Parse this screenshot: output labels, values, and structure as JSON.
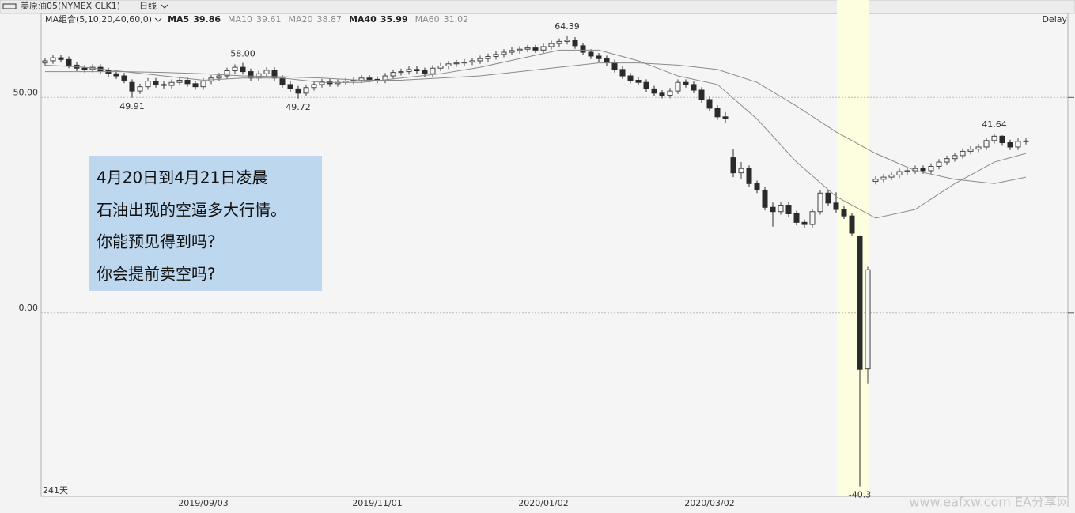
{
  "header": {
    "instrument": "美原油05(NYMEX CLK1)",
    "period": "日线",
    "ma_group": "MA组合(5,10,20,40,60,0)",
    "delay": "Delay"
  },
  "chart_data": {
    "type": "candlestick",
    "categories": [
      null,
      null,
      null,
      null,
      null,
      null,
      null,
      null,
      null,
      null,
      null,
      null,
      null,
      null,
      null,
      null,
      null,
      null,
      null,
      null,
      "2019/09/03",
      null,
      null,
      null,
      null,
      null,
      null,
      null,
      null,
      null,
      null,
      null,
      null,
      null,
      null,
      null,
      null,
      null,
      null,
      null,
      null,
      null,
      "2019/11/01",
      null,
      null,
      null,
      null,
      null,
      null,
      null,
      null,
      null,
      null,
      null,
      null,
      null,
      null,
      null,
      null,
      null,
      null,
      null,
      null,
      "2020/01/02",
      null,
      null,
      null,
      null,
      null,
      null,
      null,
      null,
      null,
      null,
      null,
      null,
      null,
      null,
      null,
      null,
      null,
      null,
      null,
      null,
      "2020/03/02",
      null,
      null,
      null,
      null,
      null,
      null,
      null,
      null,
      null,
      null,
      null,
      null,
      null,
      null,
      null,
      null,
      null,
      null,
      null,
      null,
      null,
      null,
      null,
      null,
      null,
      null,
      null,
      null,
      null,
      null,
      null,
      null,
      null,
      null,
      null,
      null,
      null,
      null,
      null,
      null
    ],
    "open": [
      58.0,
      58.5,
      59.2,
      58.8,
      57.5,
      56.8,
      56.5,
      57.0,
      56.2,
      55.5,
      55.0,
      53.5,
      51.5,
      52.5,
      53.8,
      53.0,
      52.8,
      53.5,
      54.0,
      53.2,
      52.5,
      53.8,
      54.5,
      55.0,
      56.2,
      57.0,
      56.0,
      54.5,
      55.5,
      56.3,
      54.5,
      53.0,
      52.0,
      51.0,
      52.3,
      53.0,
      53.6,
      53.2,
      53.5,
      53.8,
      54.0,
      54.5,
      54.2,
      54.0,
      55.0,
      55.8,
      56.0,
      56.5,
      56.2,
      55.5,
      56.8,
      57.3,
      57.8,
      58.0,
      58.2,
      58.5,
      59.0,
      59.5,
      60.0,
      60.5,
      60.9,
      61.2,
      61.5,
      61.0,
      61.8,
      62.5,
      63.0,
      63.3,
      62.0,
      60.5,
      59.6,
      59.0,
      58.1,
      56.5,
      55.0,
      54.0,
      53.5,
      52.0,
      51.0,
      50.5,
      51.5,
      53.5,
      53.0,
      51.7,
      49.5,
      47.5,
      45.5,
      36.0,
      32.5,
      33.5,
      30.0,
      28.5,
      24.5,
      23.5,
      25.0,
      23.0,
      21.0,
      20.5,
      23.5,
      27.8,
      25.5,
      24.0,
      22.5,
      17.7,
      -13.0,
      30.5,
      31.0,
      31.5,
      32.0,
      32.8,
      33.0,
      33.5,
      33.0,
      34.0,
      35.0,
      35.8,
      36.5,
      37.5,
      38.0,
      38.5,
      40.0,
      41.0,
      39.5,
      38.5,
      39.8
    ],
    "high": [
      59.2,
      59.9,
      59.9,
      59.5,
      58.2,
      57.5,
      57.7,
      57.7,
      56.9,
      56.2,
      55.7,
      54.2,
      53.2,
      54.5,
      54.5,
      53.7,
      54.2,
      54.7,
      54.7,
      53.9,
      54.5,
      55.2,
      55.7,
      56.9,
      57.7,
      58.0,
      56.7,
      56.2,
      57.0,
      57.0,
      55.2,
      53.7,
      52.7,
      53.0,
      53.7,
      54.3,
      54.3,
      54.2,
      54.5,
      54.7,
      55.2,
      55.2,
      54.9,
      55.7,
      56.5,
      56.7,
      57.2,
      57.2,
      56.9,
      57.5,
      58.0,
      58.5,
      58.7,
      58.9,
      59.2,
      59.7,
      60.2,
      60.7,
      61.2,
      61.6,
      61.9,
      62.2,
      62.2,
      62.5,
      63.2,
      63.7,
      64.39,
      64.0,
      62.7,
      61.2,
      60.3,
      59.7,
      58.8,
      57.2,
      55.7,
      54.7,
      54.2,
      52.7,
      51.7,
      52.2,
      54.2,
      54.2,
      53.7,
      52.4,
      50.2,
      48.2,
      46.6,
      38.0,
      35.0,
      34.2,
      30.7,
      29.2,
      25.6,
      25.7,
      25.7,
      23.7,
      21.7,
      24.2,
      28.5,
      28.5,
      28.0,
      24.7,
      23.2,
      18.0,
      10.7,
      31.7,
      32.2,
      32.7,
      33.5,
      33.7,
      34.2,
      34.2,
      34.7,
      35.7,
      36.5,
      37.2,
      38.2,
      38.7,
      39.2,
      40.7,
      41.64,
      41.2,
      40.2,
      40.5,
      40.6
    ],
    "low": [
      57.3,
      57.8,
      58.1,
      56.8,
      56.1,
      55.8,
      55.8,
      55.5,
      54.8,
      54.3,
      53.3,
      49.91,
      50.8,
      51.8,
      52.3,
      52.1,
      52.1,
      52.8,
      52.5,
      51.8,
      51.8,
      53.1,
      53.8,
      54.3,
      55.5,
      55.3,
      53.8,
      53.8,
      54.8,
      53.8,
      52.3,
      51.3,
      49.72,
      50.3,
      51.6,
      52.3,
      52.5,
      52.5,
      52.8,
      53.1,
      53.3,
      53.5,
      53.3,
      53.3,
      54.3,
      55.1,
      55.3,
      55.5,
      54.8,
      54.8,
      56.1,
      56.6,
      57.1,
      57.3,
      57.5,
      57.8,
      58.3,
      58.8,
      59.3,
      59.8,
      60.2,
      60.5,
      60.3,
      60.3,
      61.1,
      61.8,
      62.3,
      61.3,
      59.8,
      58.9,
      58.3,
      57.4,
      55.8,
      54.3,
      53.3,
      52.8,
      51.3,
      50.3,
      49.8,
      49.8,
      50.8,
      52.3,
      51.0,
      48.8,
      46.8,
      44.8,
      44.0,
      31.5,
      31.0,
      29.3,
      27.8,
      23.8,
      20.0,
      22.8,
      22.3,
      20.3,
      19.8,
      19.8,
      22.8,
      24.8,
      23.3,
      21.8,
      17.8,
      -40.32,
      -16.5,
      29.8,
      30.3,
      30.8,
      31.3,
      32.1,
      32.3,
      32.3,
      32.3,
      33.3,
      34.3,
      35.1,
      35.8,
      36.8,
      37.3,
      37.8,
      39.3,
      38.8,
      37.8,
      37.8,
      39.1
    ],
    "close": [
      58.5,
      59.2,
      58.8,
      57.5,
      56.8,
      56.5,
      57.0,
      56.2,
      55.5,
      55.0,
      54.0,
      51.5,
      52.5,
      53.8,
      53.0,
      52.8,
      53.5,
      54.0,
      53.2,
      52.5,
      53.8,
      54.5,
      55.0,
      56.2,
      57.0,
      56.0,
      54.5,
      55.5,
      56.3,
      54.5,
      53.0,
      52.0,
      51.0,
      52.3,
      53.0,
      53.6,
      53.2,
      53.5,
      53.8,
      54.0,
      54.5,
      54.2,
      54.0,
      55.0,
      55.8,
      56.0,
      56.5,
      56.2,
      55.5,
      56.8,
      57.3,
      57.8,
      58.0,
      58.2,
      58.5,
      59.0,
      59.5,
      60.0,
      60.5,
      60.9,
      61.2,
      61.5,
      61.0,
      61.8,
      62.5,
      63.0,
      63.3,
      62.0,
      60.5,
      59.6,
      59.0,
      58.1,
      56.5,
      55.0,
      54.0,
      53.5,
      52.0,
      51.0,
      50.5,
      51.5,
      53.5,
      53.0,
      51.7,
      49.5,
      47.5,
      45.5,
      45.2,
      32.5,
      33.5,
      30.0,
      28.5,
      24.5,
      23.5,
      25.0,
      23.0,
      21.0,
      20.5,
      23.5,
      27.8,
      25.5,
      24.0,
      22.5,
      18.5,
      -13.1,
      10.0,
      31.0,
      31.5,
      32.0,
      32.8,
      33.0,
      33.5,
      33.0,
      34.0,
      35.0,
      35.8,
      36.5,
      37.5,
      38.0,
      38.5,
      40.0,
      41.0,
      39.5,
      38.5,
      39.8,
      39.9
    ],
    "up_color": "#444444",
    "down_color": "#2a2a2a",
    "ylim": [
      -42.6,
      69.5
    ],
    "yticks": [
      {
        "value": 0,
        "label": "0.00"
      },
      {
        "value": 50,
        "label": "50.00"
      }
    ],
    "grid": true,
    "ma_series": [
      {
        "name": "MA5",
        "last": 39.86,
        "color": "#222222"
      },
      {
        "name": "MA10",
        "last": 39.61,
        "color": "#8a8a8a"
      },
      {
        "name": "MA20",
        "last": 38.87,
        "color": "#8a8a8a",
        "x": [
          0,
          5,
          10,
          15,
          20,
          25,
          30,
          35,
          40,
          45,
          50,
          55,
          60,
          65,
          70,
          75,
          80,
          85,
          90,
          95,
          100,
          105,
          110,
          115,
          120,
          124
        ],
        "values": [
          57.5,
          57,
          56,
          55,
          54,
          54.5,
          54.5,
          53.5,
          53.5,
          54.5,
          55.5,
          57,
          59,
          61,
          61,
          58.5,
          55,
          53,
          45,
          35,
          27,
          22,
          24,
          30,
          35,
          37
        ]
      },
      {
        "name": "MA40",
        "last": 35.99,
        "color": "#222222"
      },
      {
        "name": "MA60",
        "last": 31.02,
        "color": "#8a8a8a",
        "x": [
          0,
          5,
          10,
          15,
          20,
          25,
          30,
          35,
          40,
          45,
          50,
          55,
          60,
          65,
          70,
          75,
          80,
          85,
          90,
          95,
          100,
          105,
          110,
          115,
          120,
          124
        ],
        "values": [
          56,
          56,
          56,
          55.8,
          55.5,
          55,
          54.8,
          54.5,
          54,
          54,
          54.5,
          55,
          56,
          57,
          58,
          58,
          57.5,
          56.5,
          53.5,
          48,
          42,
          37,
          33,
          31,
          30,
          31.5
        ]
      }
    ],
    "annotations": [
      {
        "text": "64.39",
        "value": 64.39,
        "x": 66,
        "position": "above"
      },
      {
        "text": "58.00",
        "value": 58.0,
        "x": 25,
        "position": "above"
      },
      {
        "text": "49.91",
        "value": 49.91,
        "x": 11,
        "position": "below"
      },
      {
        "text": "49.72",
        "value": 49.72,
        "x": 32,
        "position": "below"
      },
      {
        "text": "41.64",
        "value": 41.64,
        "x": 120,
        "position": "above"
      },
      {
        "text": "-40.3",
        "value": -40.32,
        "x": 103,
        "position": "below"
      }
    ],
    "day_count": "241天"
  },
  "note_box": {
    "lines": [
      "4月20日到4月21日凌晨",
      "石油出现的空逼多大行情。",
      "你能预见得到吗?",
      "你会提前卖空吗?"
    ]
  },
  "watermark": "www.eafxw.com  EA分享网"
}
